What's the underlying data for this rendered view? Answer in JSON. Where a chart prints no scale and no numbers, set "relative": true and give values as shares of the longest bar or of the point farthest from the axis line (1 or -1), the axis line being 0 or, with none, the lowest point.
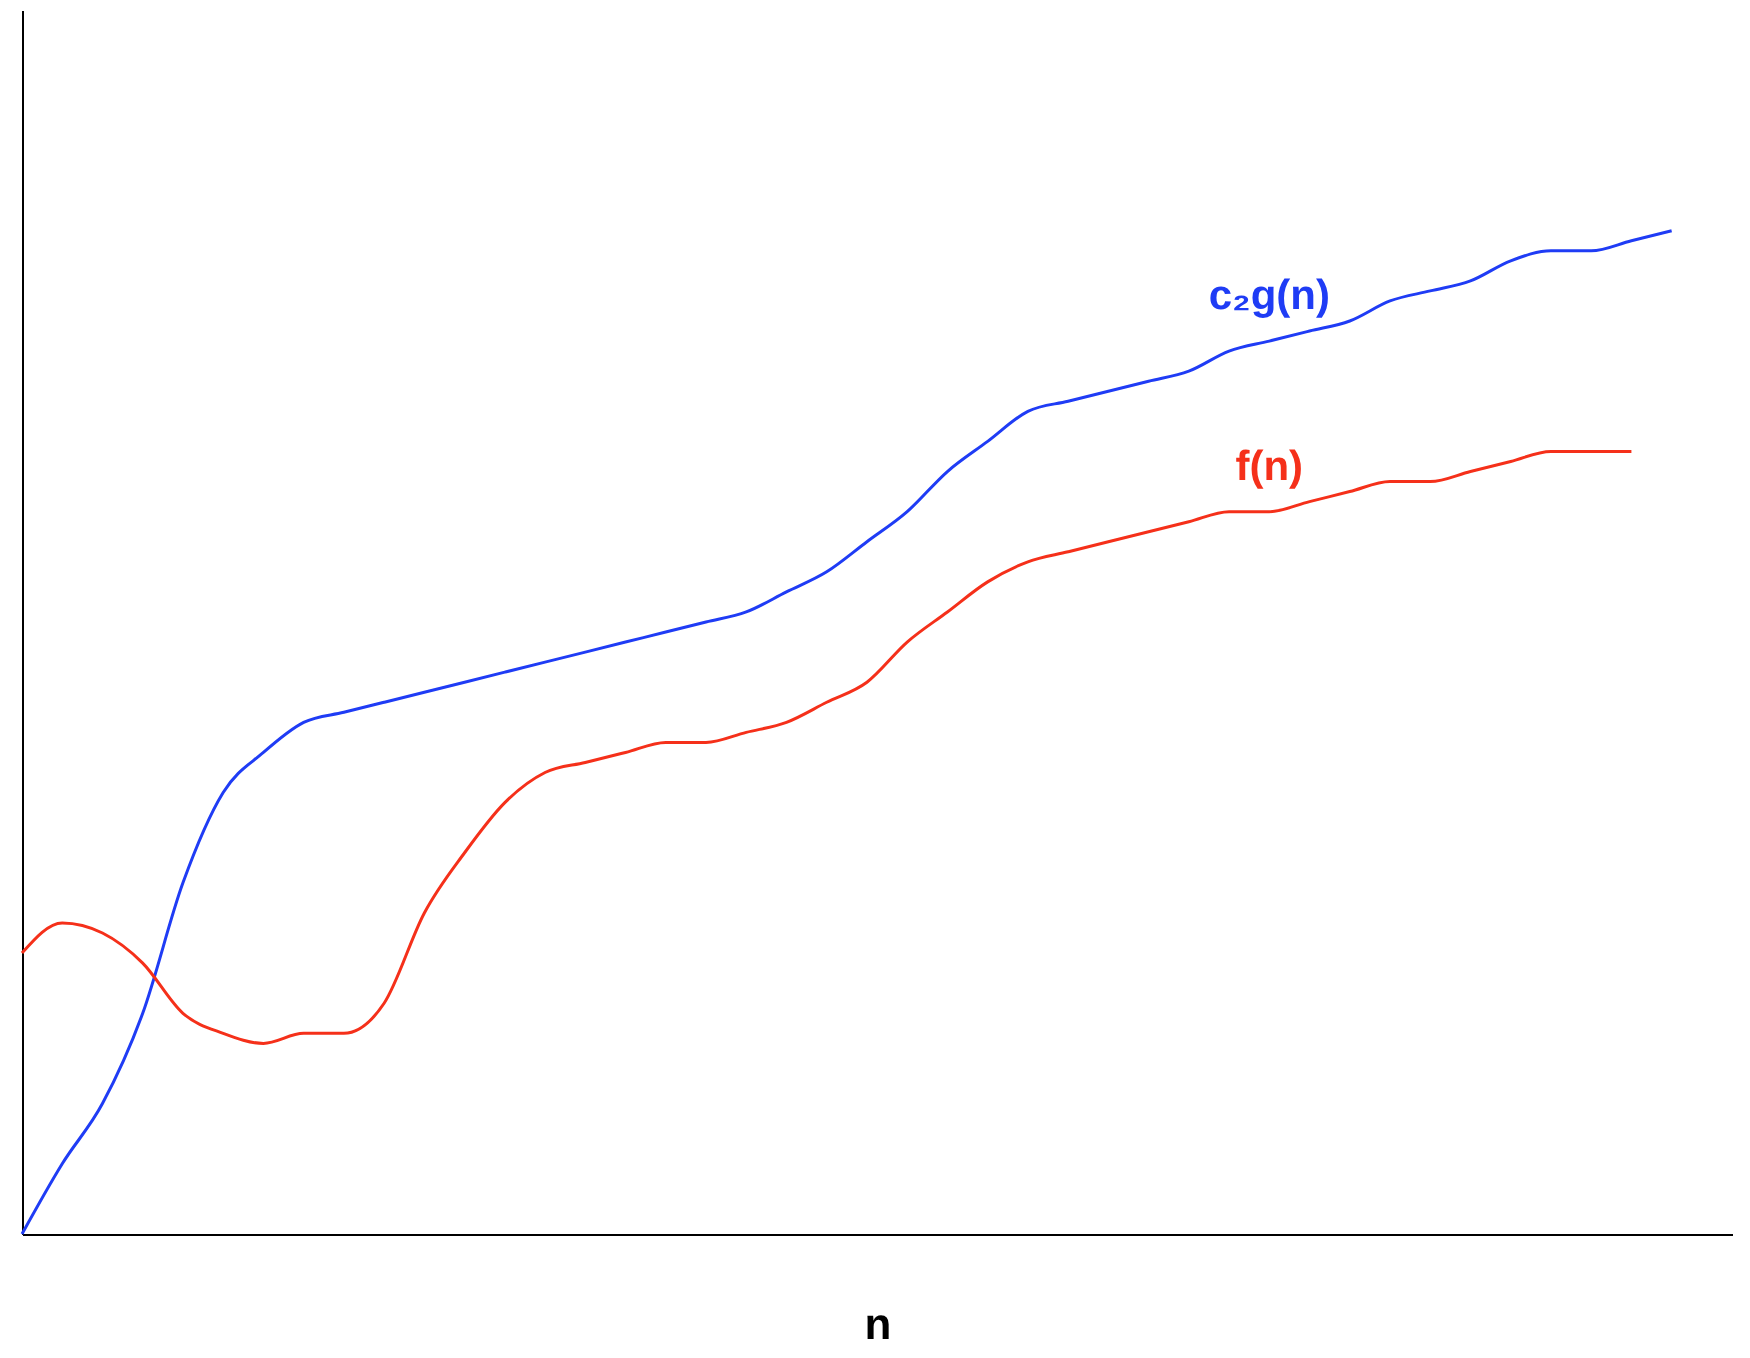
{
  "chart_data": {
    "type": "line",
    "relative": true,
    "xlabel": "n",
    "grid": false,
    "legend": false,
    "marker": "none",
    "line_style": "solid",
    "categories": [
      null,
      null,
      null,
      null,
      null,
      null,
      null,
      null,
      null,
      null,
      null,
      null,
      null,
      null,
      null,
      null,
      null,
      null,
      null,
      null,
      null,
      null,
      null,
      null,
      null,
      null,
      null,
      null,
      null,
      null,
      null,
      null,
      null,
      null,
      null,
      null,
      null,
      null,
      null,
      null,
      null,
      null
    ],
    "series": [
      {
        "name": "c₂g(n)",
        "color": "#1f3cf5",
        "values": [
          0,
          0.07,
          0.13,
          0.22,
          0.35,
          0.44,
          0.48,
          0.51,
          0.52,
          0.53,
          0.54,
          0.55,
          0.56,
          0.57,
          0.58,
          0.59,
          0.6,
          0.61,
          0.62,
          0.64,
          0.66,
          0.69,
          0.72,
          0.76,
          0.79,
          0.82,
          0.83,
          0.84,
          0.85,
          0.86,
          0.88,
          0.89,
          0.9,
          0.91,
          0.93,
          0.94,
          0.95,
          0.97,
          0.98,
          0.98,
          0.99,
          1.0
        ]
      },
      {
        "name": "f(n)",
        "color": "#f5301a",
        "values": [
          0.28,
          0.31,
          0.3,
          0.27,
          0.22,
          0.2,
          0.19,
          0.2,
          0.2,
          0.23,
          0.32,
          0.38,
          0.43,
          0.46,
          0.47,
          0.48,
          0.49,
          0.49,
          0.5,
          0.51,
          0.53,
          0.55,
          0.59,
          0.62,
          0.65,
          0.67,
          0.68,
          0.69,
          0.7,
          0.71,
          0.72,
          0.72,
          0.73,
          0.74,
          0.75,
          0.75,
          0.76,
          0.77,
          0.78,
          0.78,
          0.78,
          null
        ]
      }
    ]
  }
}
